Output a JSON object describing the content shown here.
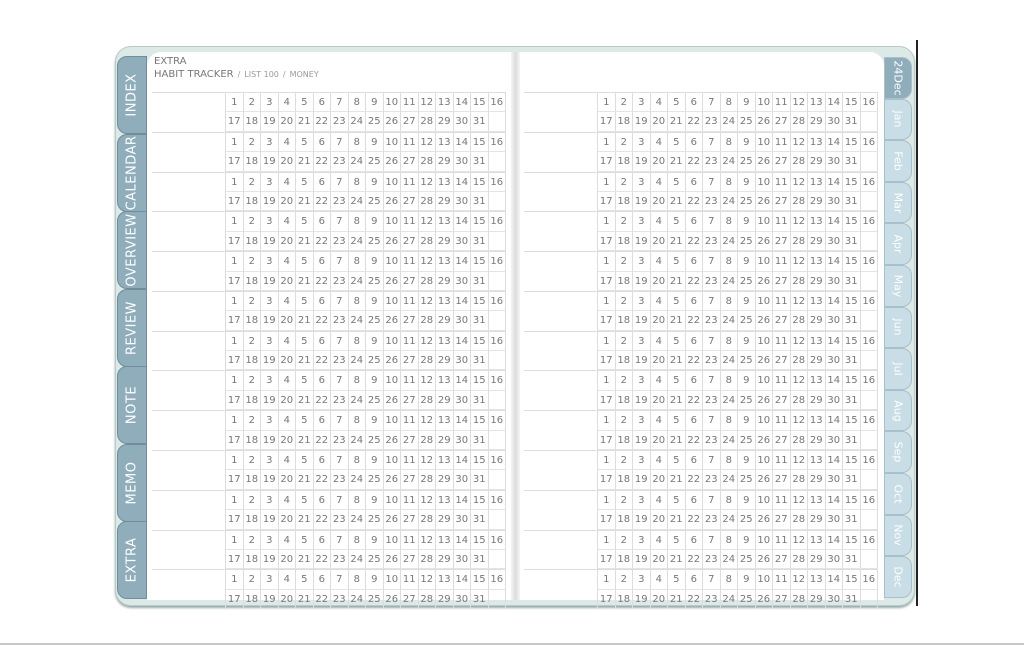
{
  "header": {
    "section": "EXTRA",
    "title": "HABIT TRACKER",
    "sep": "/",
    "crumbs": [
      "LIST 100",
      "MONEY"
    ]
  },
  "left_tabs": [
    "INDEX",
    "CALENDAR",
    "OVERVIEW",
    "REVIEW",
    "NOTE",
    "MEMO",
    "EXTRA"
  ],
  "right_tabs": [
    "24Dec",
    "Jan",
    "Feb",
    "Mar",
    "Apr",
    "May",
    "Jun",
    "Jul",
    "Aug",
    "Sep",
    "Oct",
    "Nov",
    "Dec"
  ],
  "active_right_tab": "24Dec",
  "tracker": {
    "blocks_per_page": 13,
    "days_row1": [
      1,
      2,
      3,
      4,
      5,
      6,
      7,
      8,
      9,
      10,
      11,
      12,
      13,
      14,
      15,
      16
    ],
    "days_row2": [
      17,
      18,
      19,
      20,
      21,
      22,
      23,
      24,
      25,
      26,
      27,
      28,
      29,
      30,
      31,
      ""
    ]
  },
  "colors": {
    "tab_dark": "#8fadba",
    "tab_light": "#c9dde6",
    "frame": "#dce9e6"
  }
}
